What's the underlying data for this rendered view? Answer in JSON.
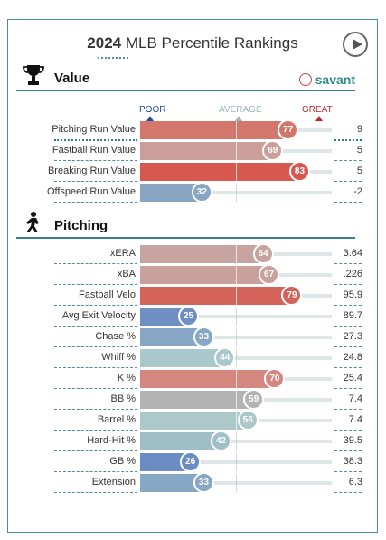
{
  "header": {
    "year": "2024",
    "title": "MLB Percentile Rankings"
  },
  "brand": {
    "name": "savant"
  },
  "scale": {
    "poor": "POOR",
    "average": "AVERAGE",
    "great": "GREAT",
    "poor_color": "#1f4e9c",
    "average_color": "#9fb3b8",
    "great_color": "#c0262c"
  },
  "chart_data": [
    {
      "type": "bar",
      "title": "Value",
      "xlim": [
        0,
        100
      ],
      "categories": [
        "Pitching Run Value",
        "Fastball Run Value",
        "Breaking Run Value",
        "Offspeed Run Value"
      ],
      "percentiles": [
        77,
        69,
        83,
        32
      ],
      "values": [
        "9",
        "5",
        "5",
        "-2"
      ],
      "colors": [
        "#d3776d",
        "#cc9e99",
        "#d7584f",
        "#8aa5c2"
      ]
    },
    {
      "type": "bar",
      "title": "Pitching",
      "xlim": [
        0,
        100
      ],
      "categories": [
        "xERA",
        "xBA",
        "Fastball Velo",
        "Avg Exit Velocity",
        "Chase %",
        "Whiff %",
        "K %",
        "BB %",
        "Barrel %",
        "Hard-Hit %",
        "GB %",
        "Extension"
      ],
      "percentiles": [
        64,
        67,
        79,
        25,
        33,
        44,
        70,
        59,
        56,
        42,
        26,
        33
      ],
      "values": [
        "3.64",
        ".226",
        "95.9",
        "89.7",
        "27.3",
        "24.8",
        "25.4",
        "7.4",
        "7.4",
        "39.5",
        "38.3",
        "6.3"
      ],
      "colors": [
        "#c7a49f",
        "#caa09b",
        "#d4645a",
        "#6f8fc4",
        "#88a6c5",
        "#a8c8cc",
        "#d4867f",
        "#b3b3b3",
        "#acc8c9",
        "#9fbec7",
        "#6b8cc2",
        "#88a6c5"
      ]
    }
  ]
}
